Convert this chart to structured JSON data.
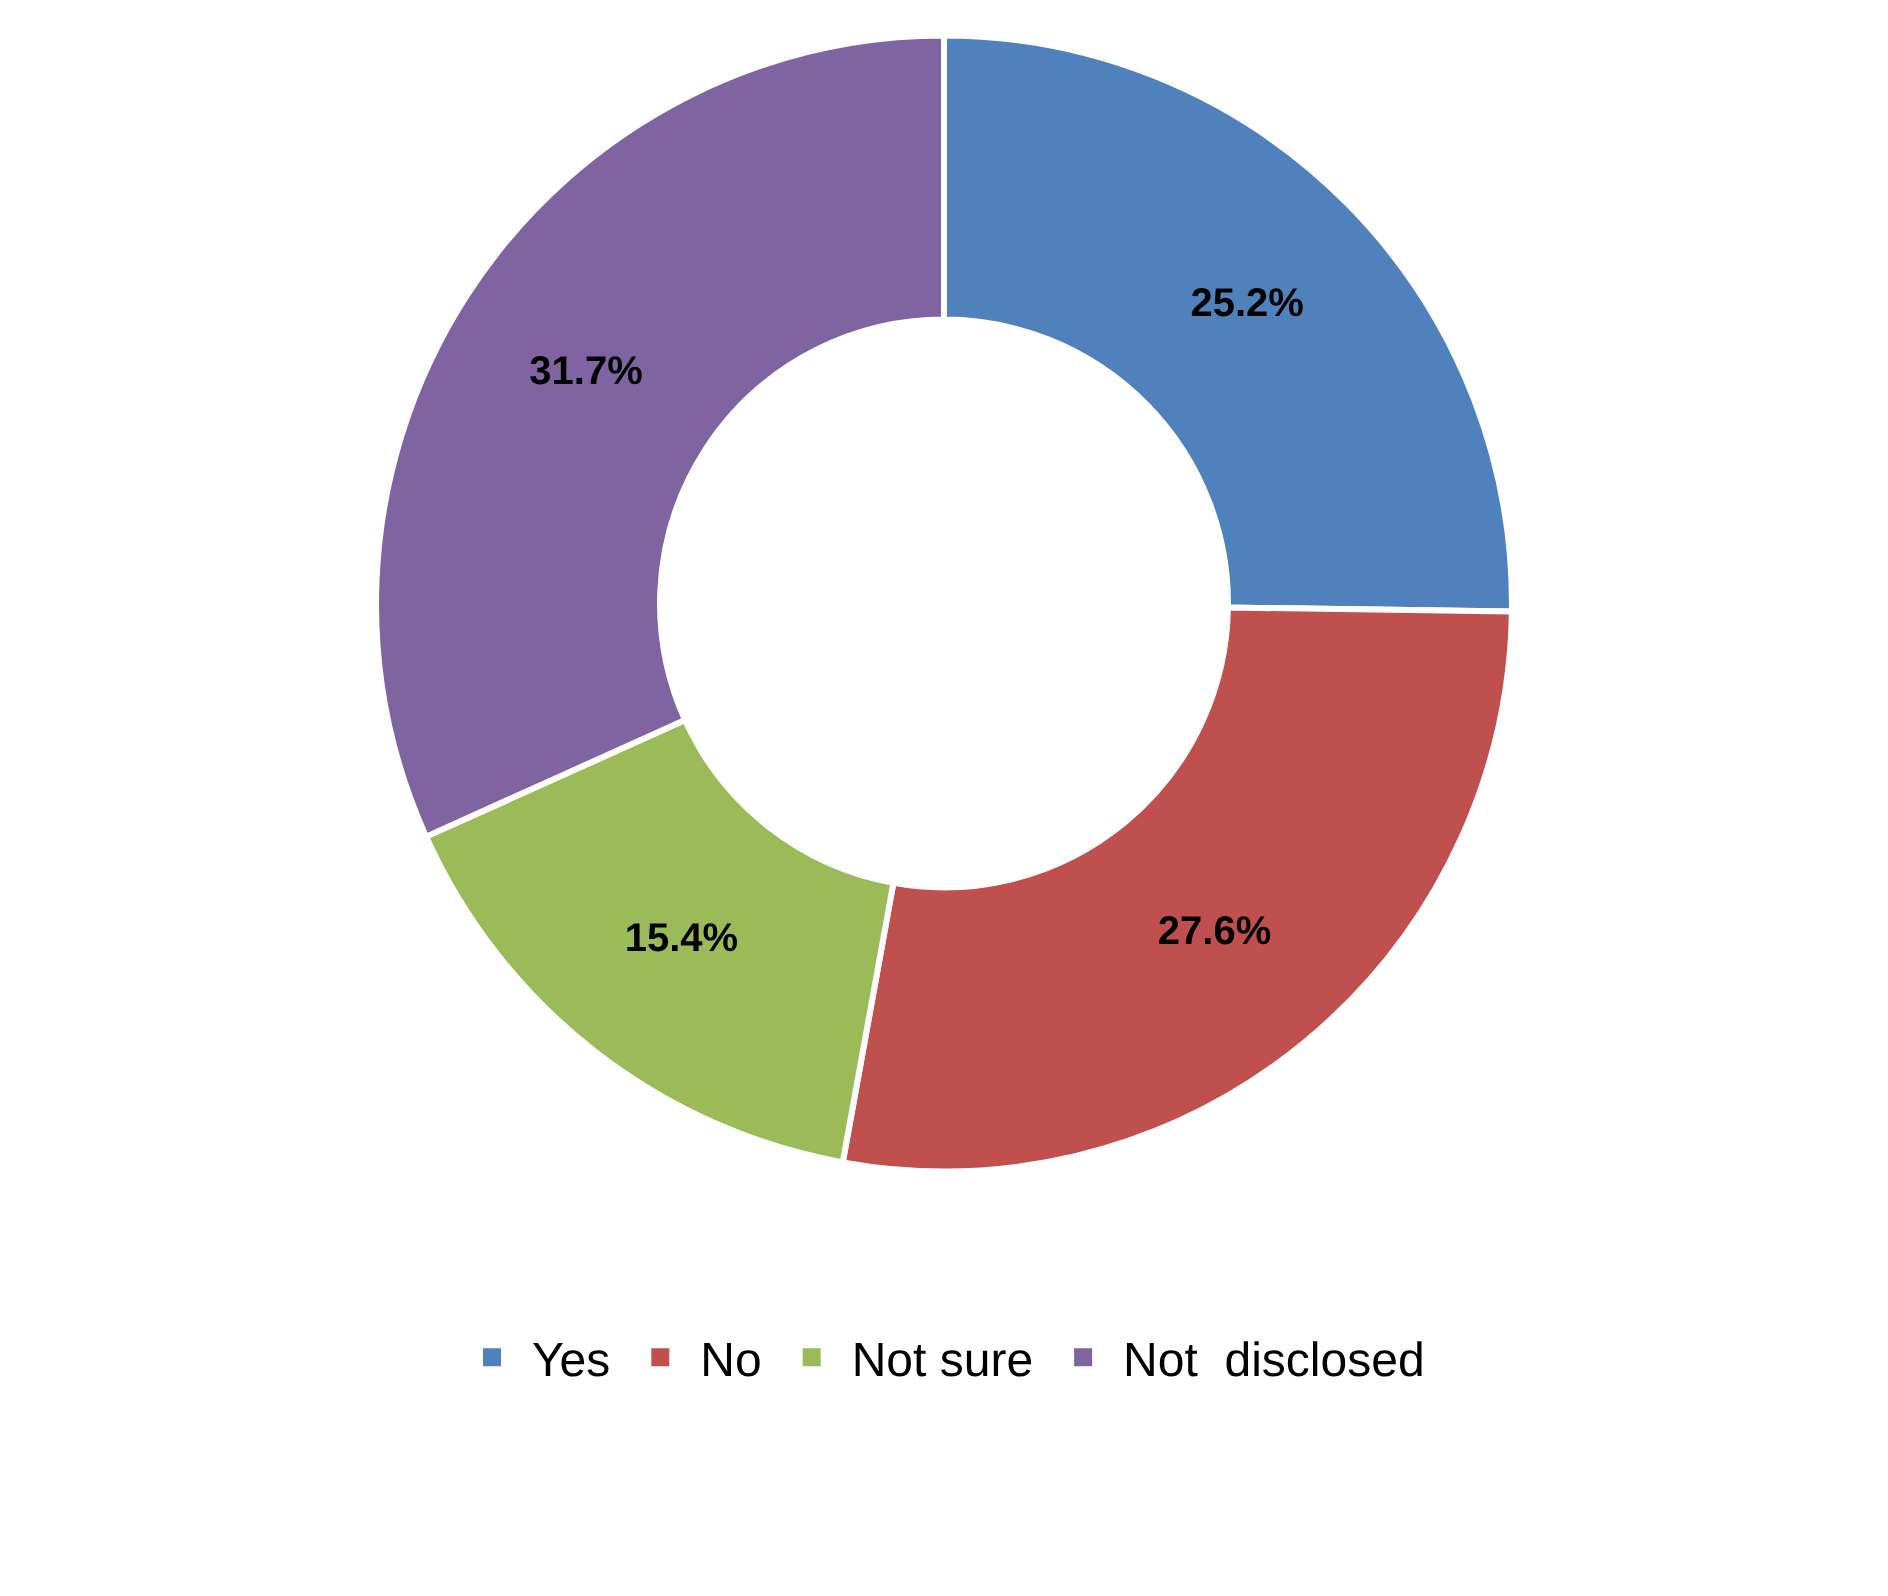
{
  "chart_data": {
    "type": "donut",
    "categories": [
      "Yes",
      "No",
      "Not sure",
      "Not  disclosed"
    ],
    "values": [
      25.2,
      27.6,
      15.4,
      31.7
    ],
    "value_labels": [
      "25.2%",
      "27.6%",
      "15.4%",
      "31.7%"
    ],
    "colors": [
      "#4f81bd",
      "#c0504d",
      "#9bbb59",
      "#8064a2"
    ],
    "legend": "bottom"
  }
}
